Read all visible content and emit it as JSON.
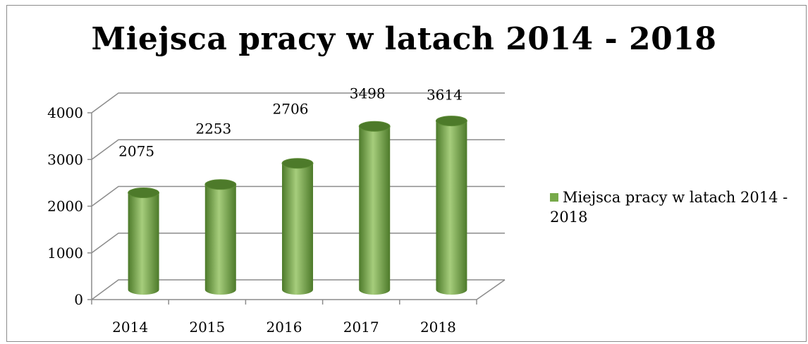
{
  "chart_data": {
    "type": "bar",
    "style": "3d-cylinder",
    "title": "Miejsca pracy w latach 2014 - 2018",
    "categories": [
      "2014",
      "2015",
      "2016",
      "2017",
      "2018"
    ],
    "series": [
      {
        "name": "Miejsca pracy w latach 2014 - 2018",
        "values": [
          2075,
          2253,
          2706,
          3498,
          3614
        ]
      }
    ],
    "y_ticks": [
      "0",
      "1000",
      "2000",
      "3000",
      "4000"
    ],
    "ylim": [
      0,
      4000
    ],
    "grid": true,
    "legend": "right",
    "colors": {
      "bar": "#77a94a",
      "bar_dark": "#4d7a2a",
      "bar_light": "#a6cd7c"
    }
  },
  "legend": {
    "line1": "Miejsca pracy w latach 2014 -",
    "line2": "2018"
  }
}
